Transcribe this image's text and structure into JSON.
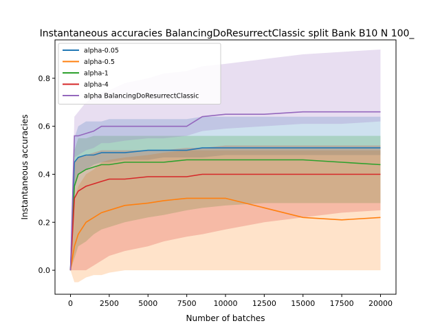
{
  "chart_data": {
    "type": "line",
    "title": "Instantaneous accuracies BalancingDoResurrectClassic split Bank B10 N 100_",
    "xlabel": "Number of batches",
    "ylabel": "Instantaneous accuracies",
    "xlim": [
      -1000,
      21000
    ],
    "ylim": [
      -0.1,
      0.96
    ],
    "xticks": [
      0,
      2500,
      5000,
      7500,
      10000,
      12500,
      15000,
      17500,
      20000
    ],
    "yticks": [
      0.0,
      0.2,
      0.4,
      0.6,
      0.8
    ],
    "grid": false,
    "legend_position": "top-left",
    "x": [
      0,
      250,
      500,
      1000,
      1500,
      2000,
      2500,
      3500,
      5000,
      6000,
      7500,
      8500,
      10000,
      12500,
      15000,
      17500,
      20000
    ],
    "series": [
      {
        "name": "alpha-0.05",
        "color": "#1f77b4",
        "mean": [
          0.0,
          0.45,
          0.47,
          0.48,
          0.48,
          0.49,
          0.49,
          0.49,
          0.5,
          0.5,
          0.5,
          0.51,
          0.51,
          0.51,
          0.51,
          0.51,
          0.51
        ],
        "band_low": [
          0.0,
          0.35,
          0.4,
          0.42,
          0.44,
          0.45,
          0.45,
          0.46,
          0.46,
          0.47,
          0.47,
          0.47,
          0.48,
          0.48,
          0.48,
          0.48,
          0.48
        ],
        "band_high": [
          0.0,
          0.55,
          0.6,
          0.62,
          0.62,
          0.62,
          0.63,
          0.63,
          0.63,
          0.63,
          0.63,
          0.64,
          0.64,
          0.64,
          0.64,
          0.64,
          0.64
        ]
      },
      {
        "name": "alpha-0.5",
        "color": "#ff7f0e",
        "mean": [
          0.0,
          0.1,
          0.15,
          0.2,
          0.22,
          0.24,
          0.25,
          0.27,
          0.28,
          0.29,
          0.3,
          0.3,
          0.3,
          0.26,
          0.22,
          0.21,
          0.22
        ],
        "band_low": [
          0.0,
          -0.05,
          -0.05,
          -0.03,
          -0.02,
          -0.02,
          -0.01,
          0.0,
          0.0,
          0.0,
          0.0,
          0.0,
          0.0,
          0.0,
          0.0,
          0.0,
          0.0
        ],
        "band_high": [
          0.0,
          0.3,
          0.35,
          0.4,
          0.42,
          0.45,
          0.46,
          0.47,
          0.48,
          0.49,
          0.5,
          0.5,
          0.5,
          0.5,
          0.5,
          0.5,
          0.5
        ]
      },
      {
        "name": "alpha-1",
        "color": "#2ca02c",
        "mean": [
          0.0,
          0.35,
          0.4,
          0.42,
          0.43,
          0.44,
          0.44,
          0.45,
          0.45,
          0.45,
          0.46,
          0.46,
          0.46,
          0.46,
          0.46,
          0.45,
          0.44
        ],
        "band_low": [
          0.0,
          0.05,
          0.1,
          0.12,
          0.15,
          0.17,
          0.18,
          0.2,
          0.22,
          0.23,
          0.25,
          0.26,
          0.27,
          0.28,
          0.28,
          0.28,
          0.28
        ],
        "band_high": [
          0.0,
          0.5,
          0.55,
          0.55,
          0.56,
          0.56,
          0.56,
          0.56,
          0.56,
          0.56,
          0.56,
          0.56,
          0.56,
          0.56,
          0.56,
          0.56,
          0.56
        ]
      },
      {
        "name": "alpha-4",
        "color": "#d62728",
        "mean": [
          0.0,
          0.3,
          0.33,
          0.35,
          0.36,
          0.37,
          0.38,
          0.38,
          0.39,
          0.39,
          0.39,
          0.4,
          0.4,
          0.4,
          0.4,
          0.4,
          0.4
        ],
        "band_low": [
          0.0,
          0.0,
          0.0,
          0.0,
          0.02,
          0.04,
          0.06,
          0.08,
          0.1,
          0.12,
          0.14,
          0.15,
          0.17,
          0.2,
          0.22,
          0.24,
          0.25
        ],
        "band_high": [
          0.0,
          0.45,
          0.47,
          0.48,
          0.49,
          0.5,
          0.5,
          0.5,
          0.5,
          0.5,
          0.51,
          0.51,
          0.52,
          0.52,
          0.52,
          0.52,
          0.52
        ]
      },
      {
        "name": "alpha BalancingDoResurrectClassic",
        "color": "#9467bd",
        "mean": [
          0.0,
          0.56,
          0.56,
          0.57,
          0.58,
          0.6,
          0.6,
          0.6,
          0.6,
          0.6,
          0.6,
          0.64,
          0.65,
          0.65,
          0.66,
          0.66,
          0.66
        ],
        "band_low": [
          0.0,
          0.47,
          0.48,
          0.5,
          0.51,
          0.53,
          0.53,
          0.54,
          0.55,
          0.55,
          0.56,
          0.58,
          0.59,
          0.6,
          0.61,
          0.61,
          0.62
        ],
        "band_high": [
          0.0,
          0.64,
          0.66,
          0.7,
          0.72,
          0.74,
          0.75,
          0.78,
          0.8,
          0.82,
          0.83,
          0.85,
          0.86,
          0.88,
          0.9,
          0.91,
          0.92
        ]
      }
    ]
  }
}
